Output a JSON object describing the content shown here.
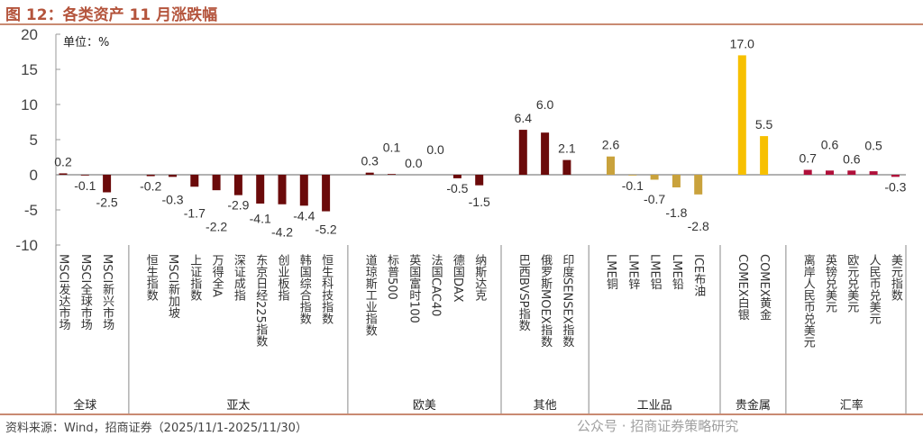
{
  "title": "图 12：各类资产 11 月涨跌幅",
  "source": "资料来源：Wind，招商证券（2025/11/1-2025/11/30）",
  "watermark": "公众号 · 招商证券策略研究",
  "chart_data": {
    "type": "bar",
    "title": "",
    "unit_label": "单位：%",
    "ylim": [
      -10,
      20
    ],
    "yticks": [
      -10,
      -5,
      0,
      5,
      10,
      15,
      20
    ],
    "grid": false,
    "groups": [
      {
        "name": "全球",
        "color": "#6b0a0a",
        "categories": [
          "MSCI发达市场",
          "MSCI全球市场",
          "MSCI新兴市场"
        ],
        "values": [
          0.2,
          -0.1,
          -2.5
        ]
      },
      {
        "name": "亚太",
        "color": "#6b0a0a",
        "categories": [
          "恒生指数",
          "MSCI新加坡",
          "上证指数",
          "万得全A",
          "深证成指",
          "东京日经225指数",
          "创业板指",
          "韩国综合指数",
          "恒生科技指数"
        ],
        "values": [
          -0.2,
          -0.3,
          -1.7,
          -2.2,
          -2.9,
          -4.1,
          -4.2,
          -4.4,
          -5.2
        ]
      },
      {
        "name": "欧美",
        "color": "#6b0a0a",
        "categories": [
          "道琼斯工业指数",
          "标普500",
          "英国富时100",
          "法国CAC40",
          "德国DAX",
          "纳斯达克"
        ],
        "values": [
          0.3,
          0.1,
          0.0,
          0.0,
          -0.5,
          -1.5
        ]
      },
      {
        "name": "其他",
        "color": "#6b0a0a",
        "categories": [
          "巴西BVSP指数",
          "俄罗斯MOEX指数",
          "印度SENSEX指数"
        ],
        "values": [
          6.4,
          6.0,
          2.1
        ]
      },
      {
        "name": "工业品",
        "color": "#c9a23c",
        "categories": [
          "LME铜",
          "LME锌",
          "LME铝",
          "LME铅",
          "ICE布油"
        ],
        "values": [
          2.6,
          -0.1,
          -0.7,
          -1.8,
          -2.8
        ]
      },
      {
        "name": "贵金属",
        "color": "#f7c000",
        "categories": [
          "COMEX白银",
          "COMEX黄金"
        ],
        "values": [
          17.0,
          5.5
        ]
      },
      {
        "name": "汇率",
        "color": "#b0103a",
        "categories": [
          "离岸人民币兑美元",
          "英镑兑美元",
          "欧元兑美元",
          "人民币兑美元",
          "美元指数"
        ],
        "values": [
          0.7,
          0.6,
          0.6,
          0.5,
          -0.3
        ]
      }
    ]
  }
}
